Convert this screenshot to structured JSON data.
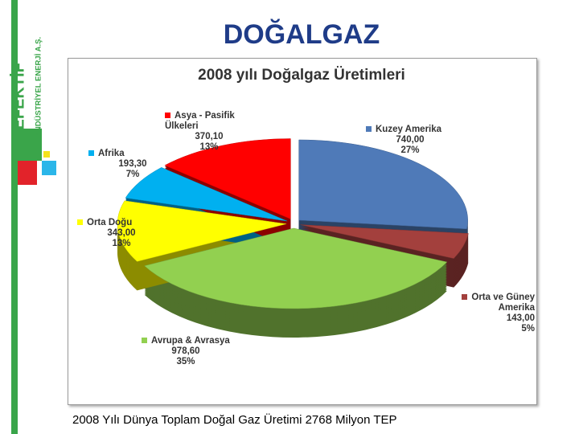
{
  "logo": {
    "name": "EFEKTİF",
    "subtitle": "ENDÜSTRİYEL ENERJİ A.Ş."
  },
  "slide_title": "DOĞALGAZ",
  "footer": "2008 Yılı Dünya Toplam Doğal Gaz Üretimi 2768 Milyon TEP",
  "chart_data": {
    "type": "pie",
    "title": "2008 yılı Doğalgaz Üretimleri",
    "categories": [
      "Kuzey Amerika",
      "Orta ve Güney Amerika",
      "Avrupa & Avrasya",
      "Orta Doğu",
      "Afrika",
      "Asya - Pasifik Ülkeleri"
    ],
    "values": [
      740.0,
      143.0,
      978.6,
      343.0,
      193.3,
      370.1
    ],
    "value_labels": [
      "740,00",
      "143,00",
      "978,60",
      "343,00",
      "193,30",
      "370,10"
    ],
    "shares": [
      27,
      5,
      35,
      13,
      7,
      13
    ],
    "share_labels": [
      "27%",
      "5%",
      "35%",
      "13%",
      "7%",
      "13%"
    ],
    "colors": [
      "#4f7ab8",
      "#a3403d",
      "#92d050",
      "#ffff00",
      "#00b0f0",
      "#ff0000"
    ]
  }
}
